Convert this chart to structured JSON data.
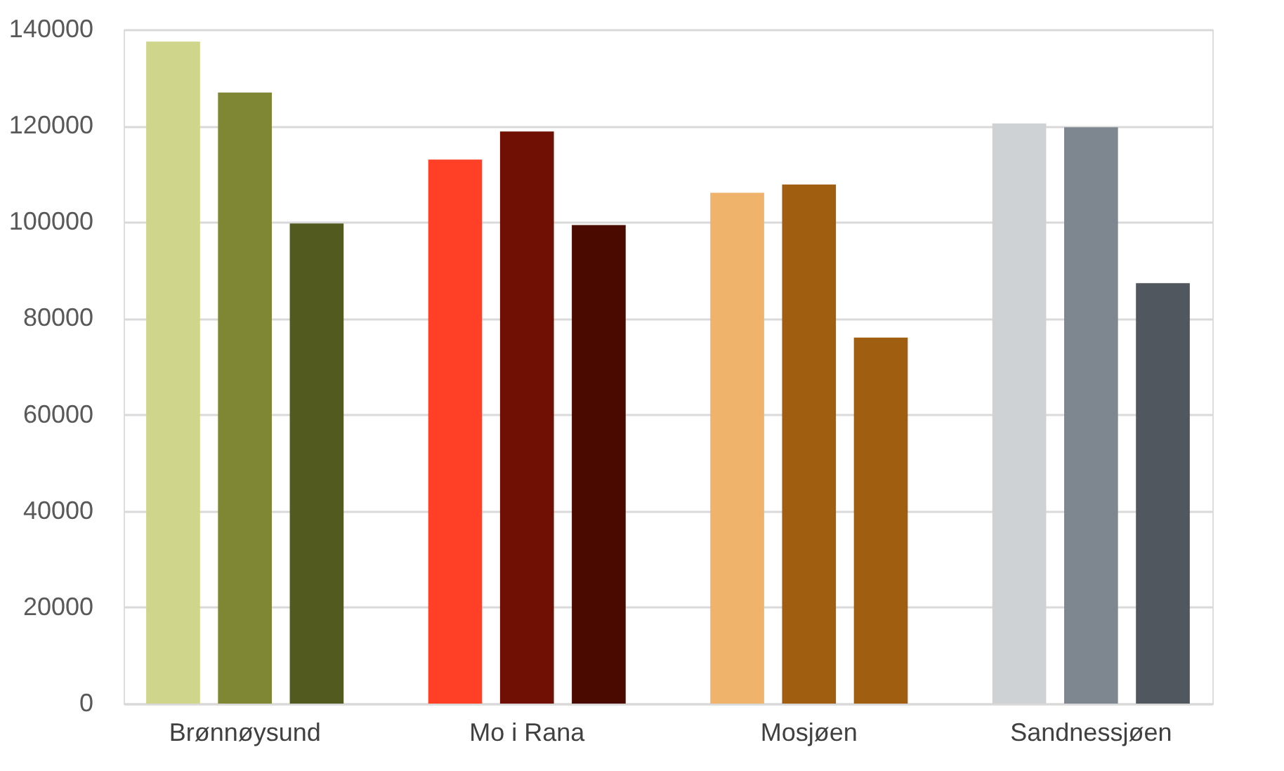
{
  "chart_data": {
    "type": "bar",
    "categories": [
      "Brønnøysund",
      "Mo i Rana",
      "Mosjøen",
      "Sandnessjøen"
    ],
    "series": [
      {
        "colors": [
          "#cfd58a",
          "#ff4027",
          "#efb36b",
          "#ced2d5"
        ],
        "values": [
          137500,
          113000,
          106100,
          120500
        ]
      },
      {
        "colors": [
          "#7f8734",
          "#700f03",
          "#a05f10",
          "#7e8790"
        ],
        "values": [
          126900,
          118800,
          107800,
          119700
        ]
      },
      {
        "colors": [
          "#525a20",
          "#4a0a00",
          "#a05f10",
          "#51575e"
        ],
        "values": [
          99700,
          99400,
          76000,
          87300
        ]
      }
    ],
    "ylim": [
      0,
      140000
    ],
    "yticks": [
      0,
      20000,
      40000,
      60000,
      80000,
      100000,
      120000,
      140000
    ],
    "grid": "y"
  }
}
